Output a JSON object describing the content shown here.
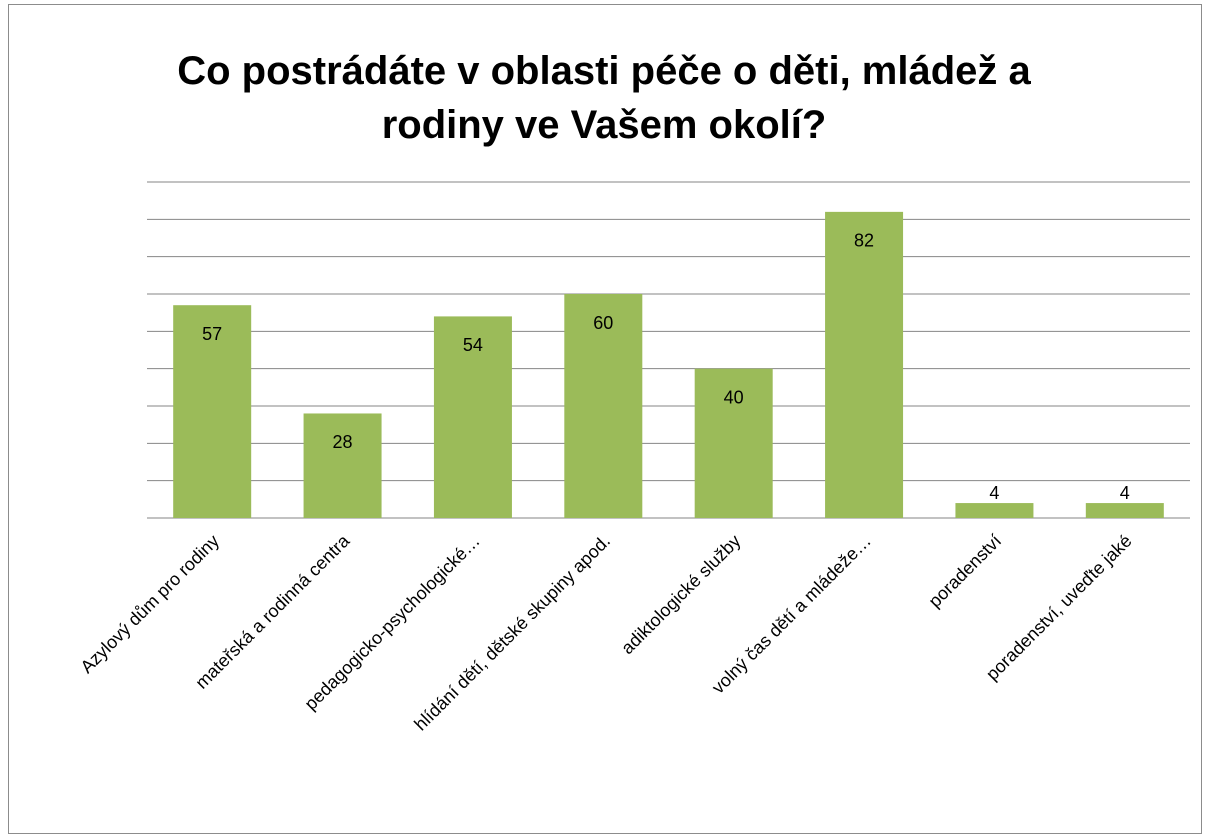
{
  "chart_data": {
    "type": "bar",
    "title": "Co postrádáte v oblasti péče o děti, mládež a rodiny ve Vašem okolí?",
    "categories": [
      "Azylový dům pro rodiny",
      "mateřská a rodinná centra",
      "pedagogicko-psychologické…",
      "hlídání dětí, dětské skupiny apod.",
      "adiktologické služby",
      "volný čas dětí a mládeže…",
      "poradenství",
      "poradenství, uveďte jaké"
    ],
    "values": [
      57,
      28,
      54,
      60,
      40,
      82,
      4,
      4
    ],
    "color": "#9bbb59",
    "ylim": [
      0,
      90
    ],
    "yticks": [
      0,
      10,
      20,
      30,
      40,
      50,
      60,
      70,
      80,
      90
    ],
    "grid": true
  }
}
